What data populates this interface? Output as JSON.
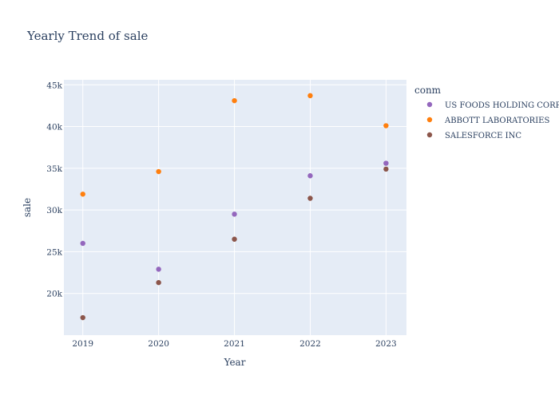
{
  "chart_data": {
    "type": "scatter",
    "title": "Yearly Trend of sale",
    "xlabel": "Year",
    "ylabel": "sale",
    "x": [
      2019,
      2020,
      2021,
      2022,
      2023
    ],
    "x_ticks": [
      "2019",
      "2020",
      "2021",
      "2022",
      "2023"
    ],
    "xlim": [
      2018.75,
      2023.27
    ],
    "ylim": [
      15000,
      45600
    ],
    "y_ticks": [
      20000,
      25000,
      30000,
      35000,
      40000,
      45000
    ],
    "y_tick_labels": [
      "20k",
      "25k",
      "30k",
      "35k",
      "40k",
      "45k"
    ],
    "grid": true,
    "legend_title": "conm",
    "legend_position": "right",
    "series": [
      {
        "name": "US FOODS HOLDING CORP",
        "color": "#9467bd",
        "values": [
          26000,
          22900,
          29500,
          34100,
          35600
        ]
      },
      {
        "name": "ABBOTT LABORATORIES",
        "color": "#ff7f0e",
        "values": [
          31900,
          34600,
          43100,
          43700,
          40100
        ]
      },
      {
        "name": "SALESFORCE INC",
        "color": "#8c564b",
        "values": [
          17100,
          21300,
          26500,
          31400,
          34900
        ]
      }
    ]
  }
}
